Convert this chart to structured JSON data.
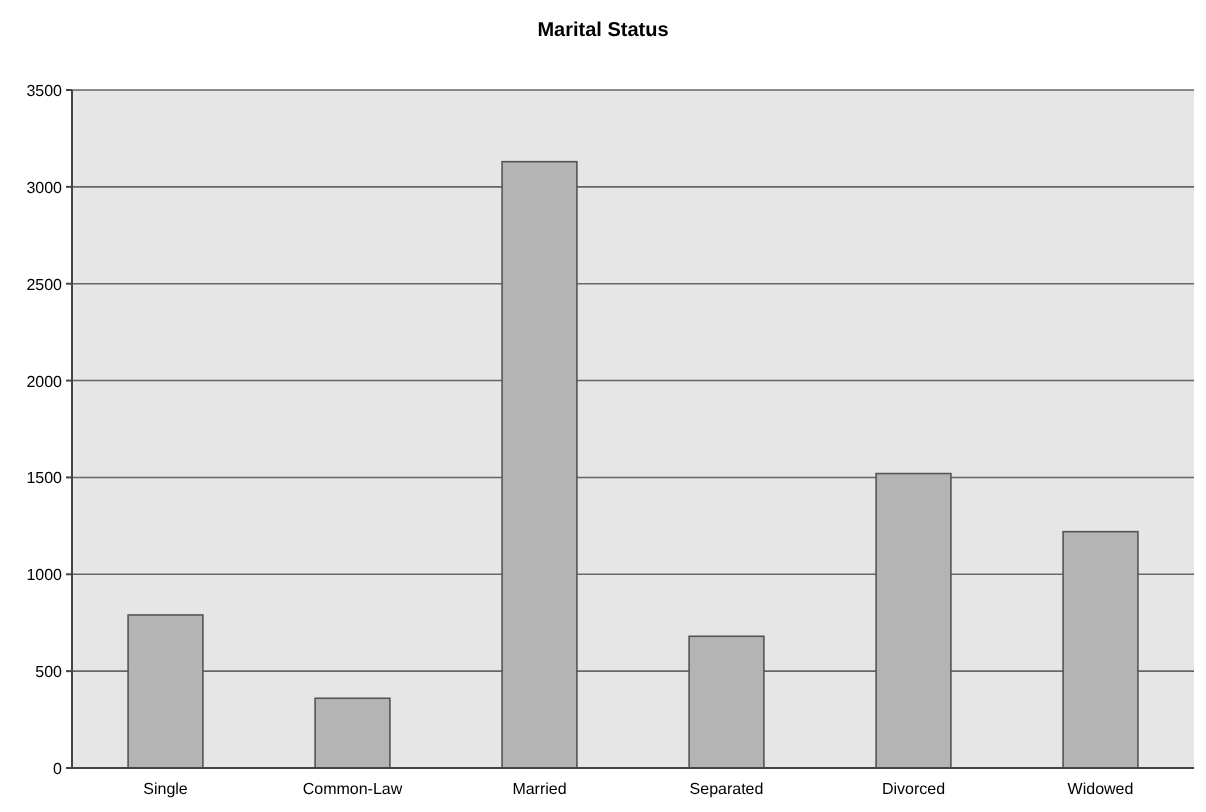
{
  "chart_data": {
    "type": "bar",
    "title": "Marital Status",
    "categories": [
      "Single",
      "Common-Law",
      "Married",
      "Separated",
      "Divorced",
      "Widowed"
    ],
    "values": [
      790,
      360,
      3130,
      680,
      1520,
      1220
    ],
    "color": "#b4b4b4",
    "ylim": [
      0,
      3500
    ],
    "yticks": [
      0,
      500,
      1000,
      1500,
      2000,
      2500,
      3000,
      3500
    ],
    "grid": "y"
  }
}
